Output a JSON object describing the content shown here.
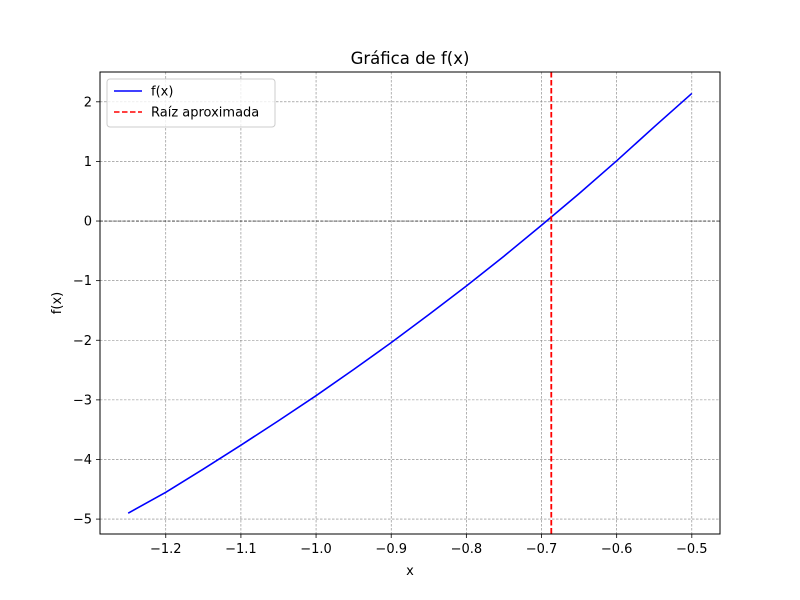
{
  "chart_data": {
    "type": "line",
    "title": "Gráfica de f(x)",
    "xlabel": "x",
    "ylabel": "f(x)",
    "xlim": [
      -1.2875,
      -0.4625
    ],
    "ylim": [
      -5.25,
      2.5
    ],
    "x_ticks": [
      -1.2,
      -1.1,
      -1.0,
      -0.9,
      -0.8,
      -0.7,
      -0.6,
      -0.5
    ],
    "x_tick_labels": [
      "−1.2",
      "−1.1",
      "−1.0",
      "−0.9",
      "−0.8",
      "−0.7",
      "−0.6",
      "−0.5"
    ],
    "y_ticks": [
      -5,
      -4,
      -3,
      -2,
      -1,
      0,
      1,
      2
    ],
    "y_tick_labels": [
      "−5",
      "−4",
      "−3",
      "−2",
      "−1",
      "0",
      "1",
      "2"
    ],
    "grid": true,
    "zero_line": 0,
    "legend_position": "top-left",
    "series": [
      {
        "name": "f(x)",
        "color": "#0000ff",
        "style": "solid",
        "x": [
          -1.25,
          -1.2,
          -1.15,
          -1.1,
          -1.05,
          -1.0,
          -0.95,
          -0.9,
          -0.85,
          -0.8,
          -0.75,
          -0.7,
          -0.65,
          -0.6,
          -0.55,
          -0.5
        ],
        "y": [
          -4.9,
          -4.55,
          -4.16,
          -3.76,
          -3.35,
          -2.93,
          -2.49,
          -2.04,
          -1.57,
          -1.09,
          -0.59,
          -0.07,
          0.46,
          1.01,
          1.58,
          2.14
        ]
      },
      {
        "name": "Raíz aproximada",
        "color": "#ff0000",
        "style": "dashed",
        "vline_x": -0.687
      }
    ]
  }
}
